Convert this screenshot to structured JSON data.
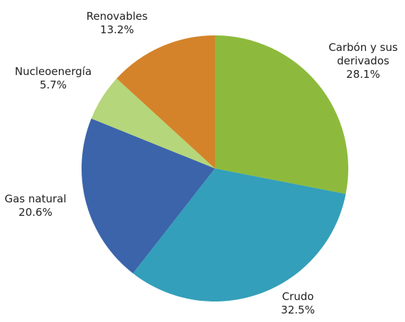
{
  "chart_data": {
    "type": "pie",
    "categories": [
      "Carbón y sus derivados",
      "Crudo",
      "Gas natural",
      "Nucleoenergía",
      "Renovables"
    ],
    "values": [
      28.1,
      32.5,
      20.6,
      5.7,
      13.2
    ],
    "value_labels": [
      "28.1%",
      "32.5%",
      "20.6%",
      "5.7%",
      "13.2%"
    ],
    "colors": [
      "#8dba3c",
      "#349fba",
      "#3b64ab",
      "#b5d67a",
      "#d4832a"
    ]
  }
}
